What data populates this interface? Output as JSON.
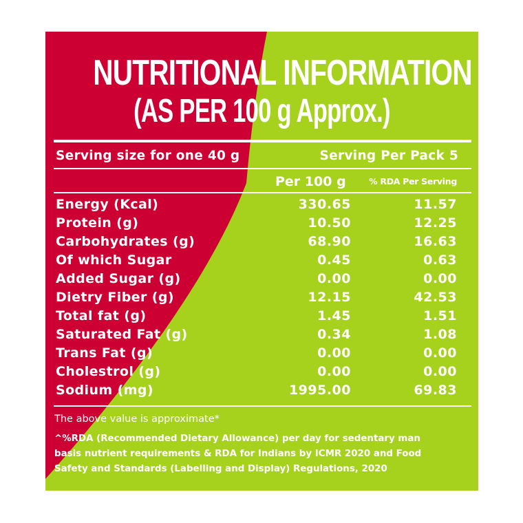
{
  "colors": {
    "red": "#cc0033",
    "green": "#a6d21e",
    "text": "#ffffff"
  },
  "title": {
    "line1": "NUTRITIONAL INFORMATION",
    "line2": "(AS PER 100 g Approx.)"
  },
  "serving": {
    "size": "Serving size for one 40 g",
    "per_pack": "Serving Per Pack 5"
  },
  "headers": {
    "per100": "Per 100 g",
    "rda": "% RDA Per Serving"
  },
  "rows": [
    {
      "name": "Energy (Kcal)",
      "per100": "330.65",
      "rda": "11.57"
    },
    {
      "name": "Protein (g)",
      "per100": "10.50",
      "rda": "12.25"
    },
    {
      "name": "Carbohydrates (g)",
      "per100": "68.90",
      "rda": "16.63"
    },
    {
      "name": "Of which Sugar",
      "per100": "0.45",
      "rda": "0.63"
    },
    {
      "name": "Added Sugar (g)",
      "per100": "0.00",
      "rda": "0.00"
    },
    {
      "name": "Dietry Fiber (g)",
      "per100": "12.15",
      "rda": "42.53"
    },
    {
      "name": "Total fat (g)",
      "per100": "1.45",
      "rda": "1.51"
    },
    {
      "name": "Saturated Fat (g)",
      "per100": "0.34",
      "rda": "1.08"
    },
    {
      "name": "Trans Fat (g)",
      "per100": "0.00",
      "rda": "0.00"
    },
    {
      "name": "Cholestrol (g)",
      "per100": "0.00",
      "rda": "0.00"
    },
    {
      "name": "Sodium (mg)",
      "per100": "1995.00",
      "rda": "69.83"
    }
  ],
  "note": "The above value is approximate*",
  "footnote": [
    "^%RDA (Recommended Dietary Allowance) per day for sedentary man",
    "basis nutrient requirements & RDA for Indians by ICMR 2020 and Food",
    "Safety and Standards (Labelling and Display) Regulations, 2020"
  ]
}
